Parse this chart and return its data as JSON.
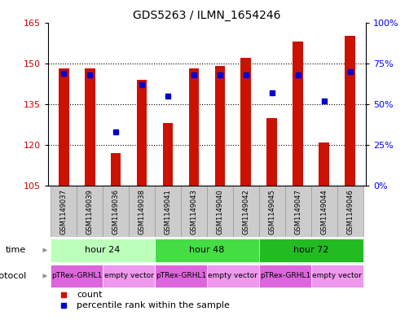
{
  "title": "GDS5263 / ILMN_1654246",
  "samples": [
    "GSM1149037",
    "GSM1149039",
    "GSM1149036",
    "GSM1149038",
    "GSM1149041",
    "GSM1149043",
    "GSM1149040",
    "GSM1149042",
    "GSM1149045",
    "GSM1149047",
    "GSM1149044",
    "GSM1149046"
  ],
  "bar_values": [
    148,
    148,
    117,
    144,
    128,
    148,
    149,
    152,
    130,
    158,
    121,
    160
  ],
  "blue_dots": [
    69,
    68,
    33,
    62,
    55,
    68,
    68,
    68,
    57,
    68,
    52,
    70
  ],
  "bar_color": "#cc1100",
  "dot_color": "#0000cc",
  "ylim_left": [
    105,
    165
  ],
  "ylim_right": [
    0,
    100
  ],
  "yticks_left": [
    105,
    120,
    135,
    150,
    165
  ],
  "yticks_right": [
    0,
    25,
    50,
    75,
    100
  ],
  "ytick_labels_right": [
    "0%",
    "25%",
    "50%",
    "75%",
    "100%"
  ],
  "grid_yticks": [
    120,
    135,
    150
  ],
  "grid_color": "black",
  "bar_width": 0.4,
  "time_groups": [
    {
      "label": "hour 24",
      "start": 0,
      "end": 3,
      "color": "#bbffbb"
    },
    {
      "label": "hour 48",
      "start": 4,
      "end": 7,
      "color": "#44dd44"
    },
    {
      "label": "hour 72",
      "start": 8,
      "end": 11,
      "color": "#22bb22"
    }
  ],
  "protocol_groups": [
    {
      "label": "pTRex-GRHL1",
      "start": 0,
      "end": 1,
      "color": "#dd66dd"
    },
    {
      "label": "empty vector",
      "start": 2,
      "end": 3,
      "color": "#ee99ee"
    },
    {
      "label": "pTRex-GRHL1",
      "start": 4,
      "end": 5,
      "color": "#dd66dd"
    },
    {
      "label": "empty vector",
      "start": 6,
      "end": 7,
      "color": "#ee99ee"
    },
    {
      "label": "pTRex-GRHL1",
      "start": 8,
      "end": 9,
      "color": "#dd66dd"
    },
    {
      "label": "empty vector",
      "start": 10,
      "end": 11,
      "color": "#ee99ee"
    }
  ],
  "ytick_color": "#cc0000",
  "label_bg_color": "#cccccc",
  "label_border_color": "#999999",
  "time_label": "time",
  "protocol_label": "protocol",
  "legend_count_label": "count",
  "legend_pct_label": "percentile rank within the sample"
}
